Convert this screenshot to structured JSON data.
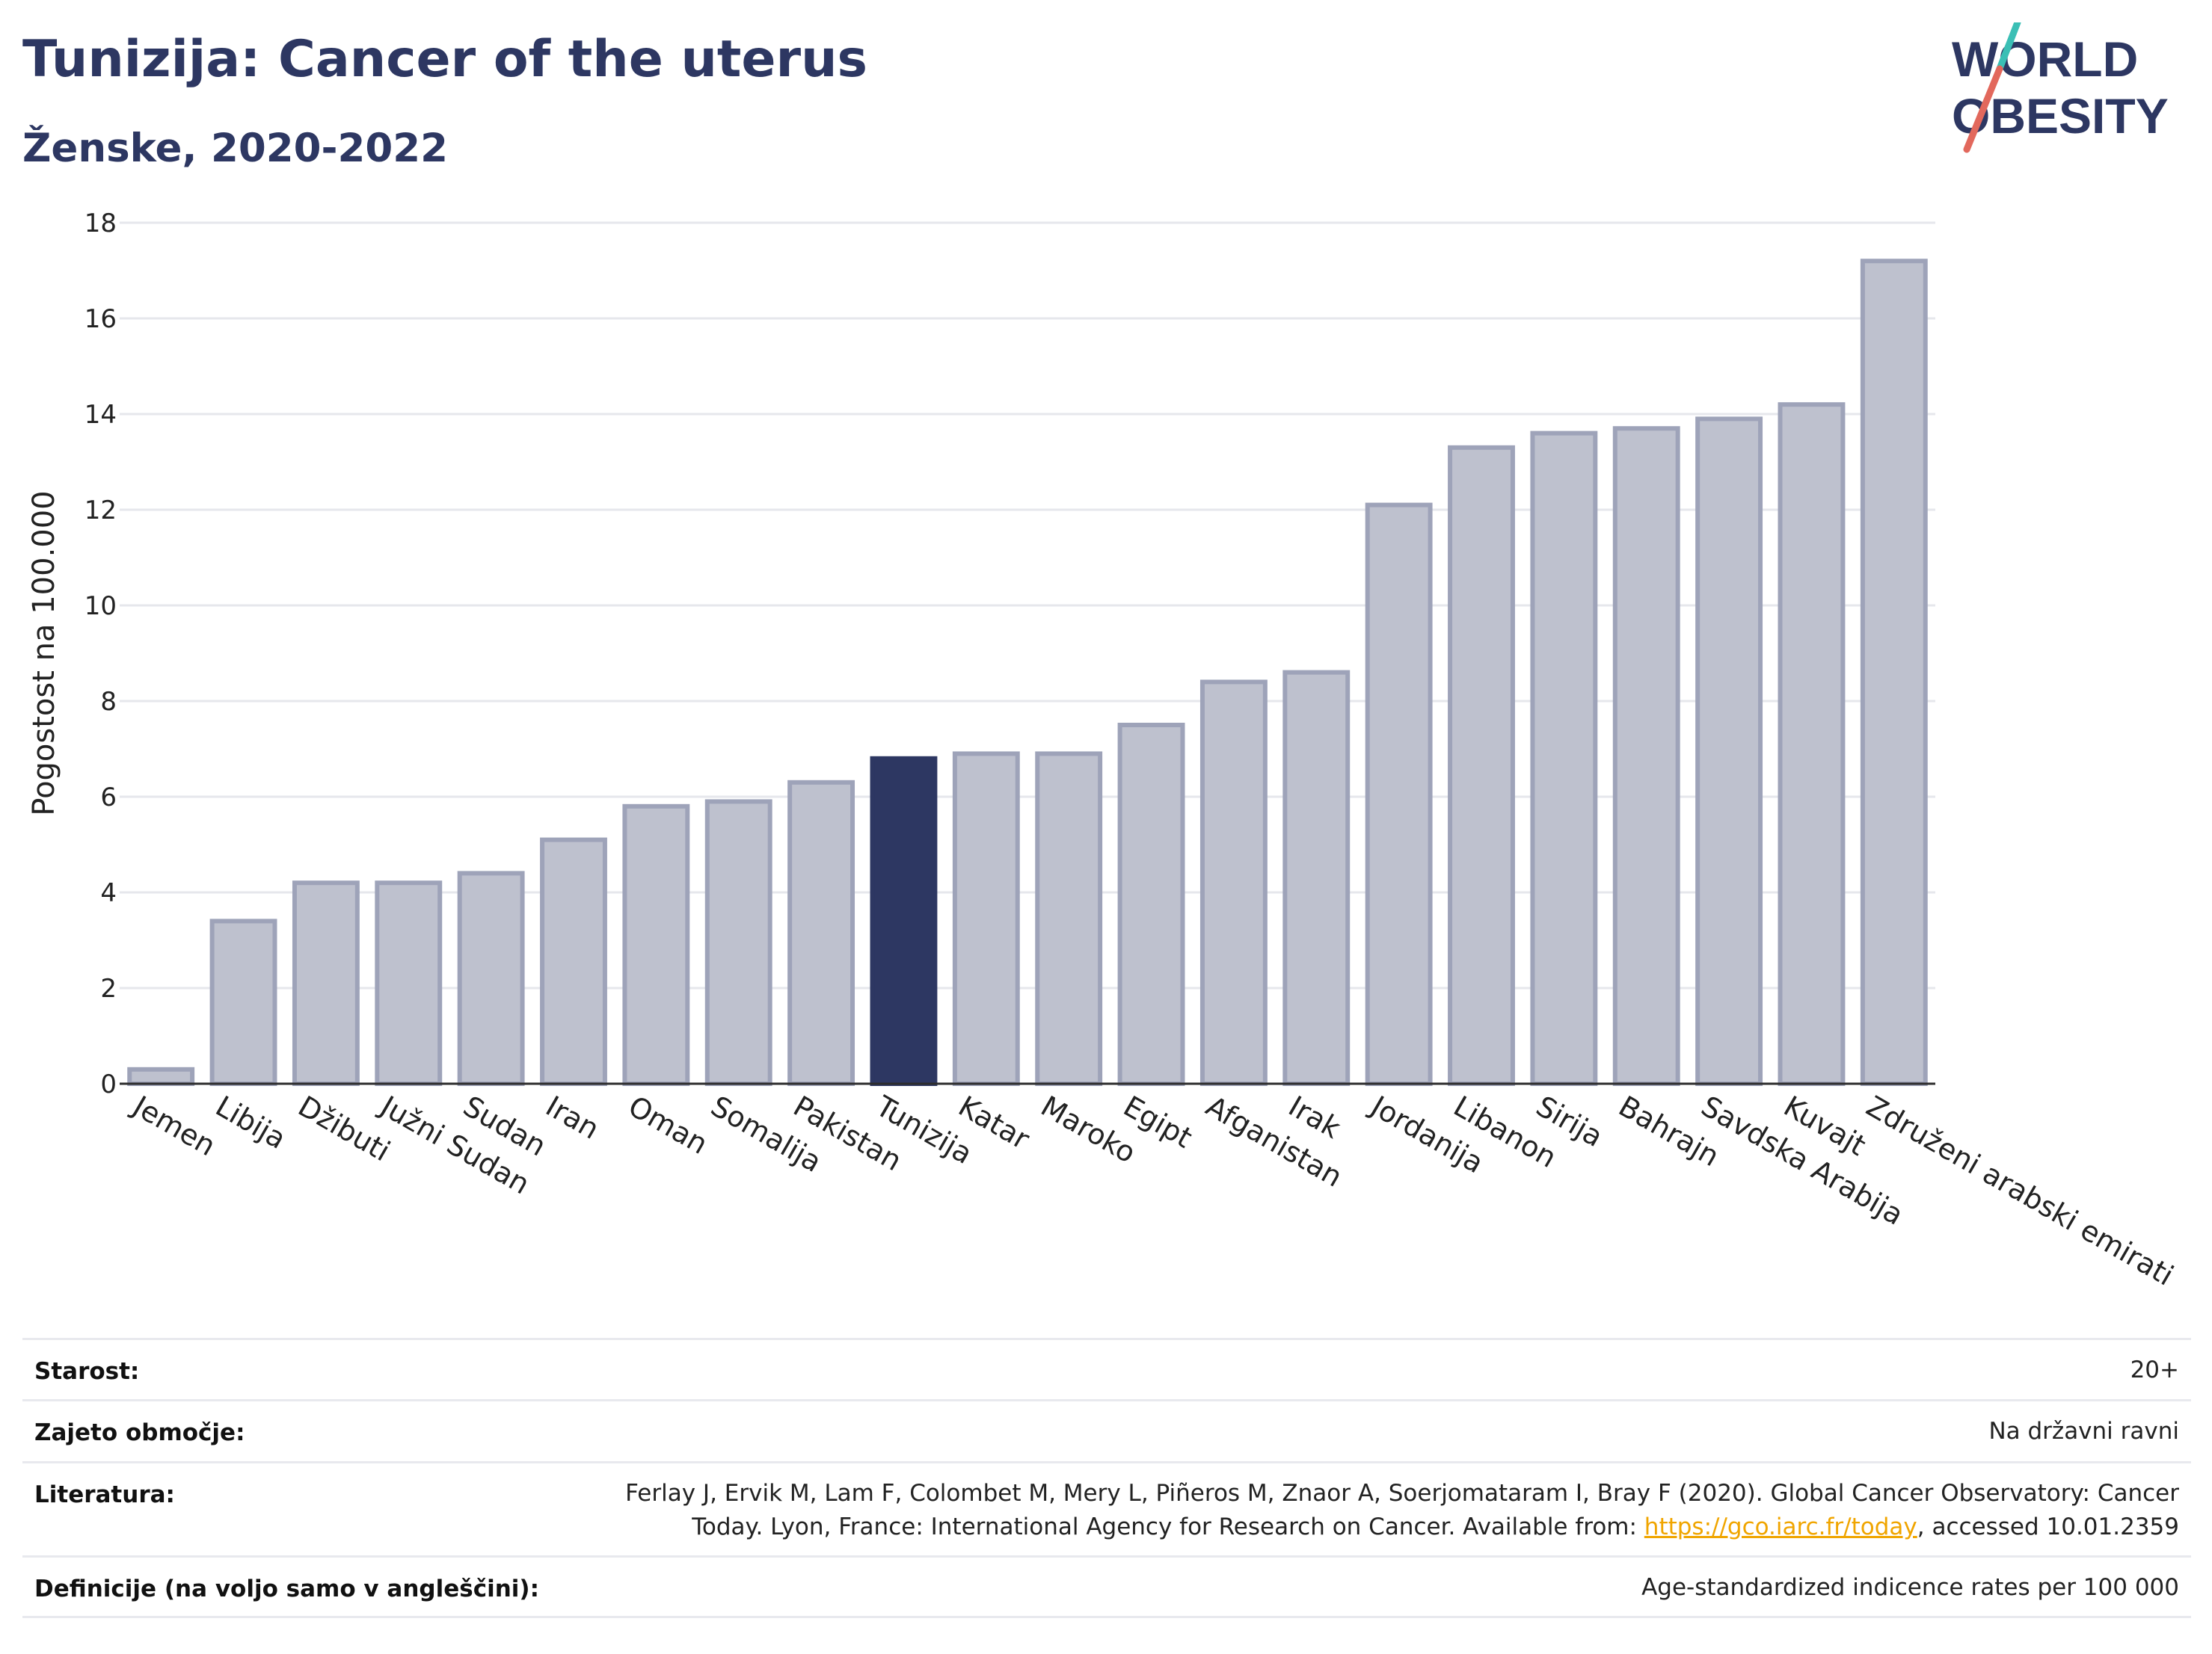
{
  "header": {
    "title": "Tunizija: Cancer of the uterus",
    "subtitle": "Ženske, 2020-2022",
    "logo_line1": "WORLD",
    "logo_line2": "OBESITY"
  },
  "colors": {
    "bar": "#bec1ce",
    "bar_border": "#9ea3b9",
    "highlight": "#2d3762",
    "title": "#2d3762",
    "grid": "#e6e7ec",
    "logo_teal": "#3bbfb5",
    "logo_red": "#e2685c"
  },
  "chart_data": {
    "type": "bar",
    "ylabel": "Pogostost na 100.000",
    "ylim": [
      0,
      18
    ],
    "yticks": [
      0,
      2,
      4,
      6,
      8,
      10,
      12,
      14,
      16,
      18
    ],
    "grid": true,
    "highlight": "Tunizija",
    "categories": [
      "Jemen",
      "Libija",
      "Džibuti",
      "Južni Sudan",
      "Sudan",
      "Iran",
      "Oman",
      "Somalija",
      "Pakistan",
      "Tunizija",
      "Katar",
      "Maroko",
      "Egipt",
      "Afganistan",
      "Irak",
      "Jordanija",
      "Libanon",
      "Sirija",
      "Bahrajn",
      "Savdska Arabija",
      "Kuvajt",
      "Združeni arabski emirati"
    ],
    "values": [
      0.3,
      3.4,
      4.2,
      4.2,
      4.4,
      5.1,
      5.8,
      5.9,
      6.3,
      6.8,
      6.9,
      6.9,
      7.5,
      8.4,
      8.6,
      12.1,
      13.3,
      13.6,
      13.7,
      13.9,
      14.2,
      17.2
    ]
  },
  "meta": {
    "age_label": "Starost:",
    "age_value": "20+",
    "area_label": "Zajeto območje:",
    "area_value": "Na državni ravni",
    "lit_label": "Literatura:",
    "lit_line1": "Ferlay J, Ervik M, Lam F, Colombet M, Mery L, Piñeros M, Znaor A, Soerjomataram I, Bray F (2020). Global Cancer Observatory: Cancer",
    "lit_line2_pre": "Today. Lyon, France: International Agency for Research on Cancer. Available from: ",
    "lit_link": "https://gco.iarc.fr/today",
    "lit_line2_post": ", accessed 10.01.2359",
    "def_label": "Definicije (na voljo samo v angleščini):",
    "def_value": "Age-standardized indicence rates per 100 000"
  }
}
